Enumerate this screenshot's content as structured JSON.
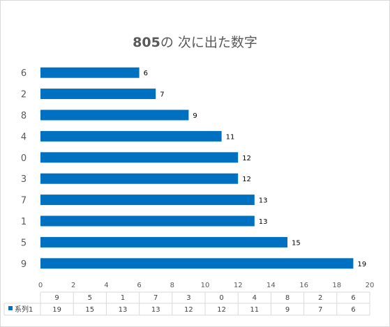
{
  "chart_data": {
    "type": "bar",
    "orientation": "horizontal",
    "title_number": "805",
    "title_text": "の 次に出た数字",
    "categories": [
      "9",
      "5",
      "1",
      "7",
      "3",
      "0",
      "4",
      "8",
      "2",
      "6"
    ],
    "series": [
      {
        "name": "系列1",
        "values": [
          19,
          15,
          13,
          13,
          12,
          12,
          11,
          9,
          7,
          6
        ],
        "color": "#0070C0"
      }
    ],
    "xlim": [
      0,
      20
    ],
    "x_ticks": [
      "0",
      "2",
      "4",
      "6",
      "8",
      "10",
      "12",
      "14",
      "16",
      "18",
      "20"
    ],
    "grid": false,
    "legend": "data-table"
  }
}
